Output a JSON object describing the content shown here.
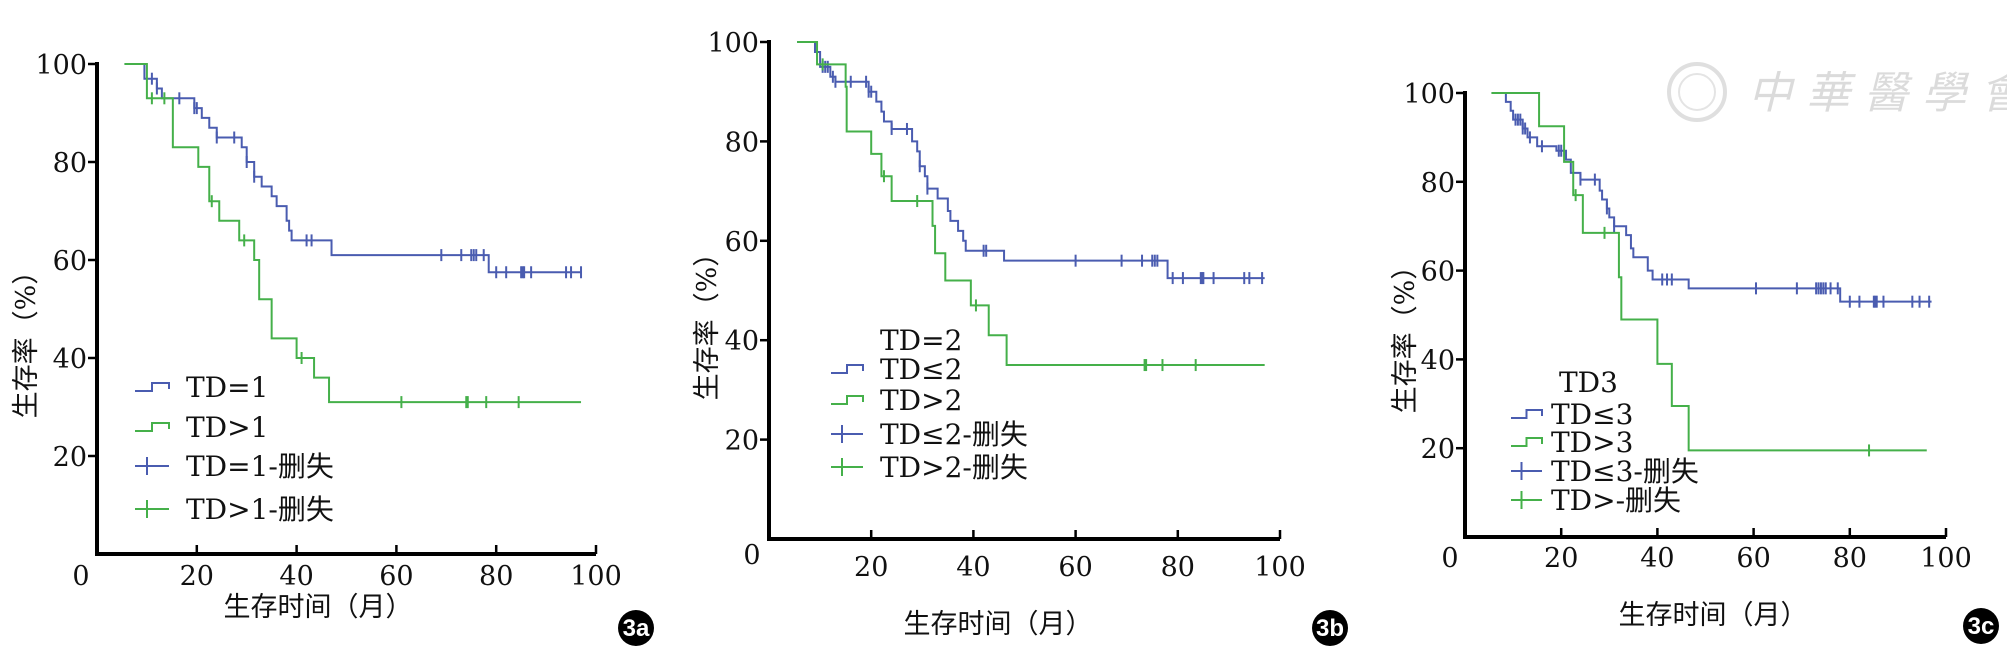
{
  "colors": {
    "group_low": "#4a5cb0",
    "group_high": "#45b04a",
    "axis": "#000000"
  },
  "watermark": {
    "text": "中華醫學會"
  },
  "chart_data": [
    {
      "type": "line",
      "panel": "3a",
      "title": "",
      "xlabel": "生存时间（月）",
      "ylabel": "生存率（%）",
      "xlim": [
        0,
        100
      ],
      "ylim": [
        0,
        100
      ],
      "xticks": [
        "0",
        "20",
        "40",
        "60",
        "80",
        "100"
      ],
      "yticks": [
        "20",
        "40",
        "60",
        "80",
        "100"
      ],
      "legend_title": "",
      "legend": [
        "TD=1",
        "TD>1",
        "TD=1-删失",
        "TD>1-删失"
      ],
      "series": [
        {
          "name": "TD=1",
          "end": 97,
          "steps": [
            [
              5.5,
              100
            ],
            [
              9.5,
              97
            ],
            [
              12,
              95
            ],
            [
              13,
              93
            ],
            [
              19.5,
              91
            ],
            [
              21,
              89
            ],
            [
              22.5,
              87
            ],
            [
              24,
              85
            ],
            [
              29,
              83
            ],
            [
              30,
              80
            ],
            [
              31.5,
              77
            ],
            [
              33,
              75
            ],
            [
              35,
              73
            ],
            [
              36,
              71
            ],
            [
              38,
              68
            ],
            [
              38.5,
              66
            ],
            [
              39,
              64
            ],
            [
              47,
              61
            ],
            [
              78.5,
              57.5
            ]
          ],
          "censored": [
            11,
            12,
            16.5,
            19.5,
            20,
            24,
            27.5,
            30,
            31.5,
            42,
            43,
            69,
            73,
            75,
            75.5,
            76,
            77.5,
            80,
            82,
            85,
            85.3,
            85.6,
            87,
            94,
            95,
            97
          ]
        },
        {
          "name": "TD>1",
          "end": 97,
          "steps": [
            [
              5.5,
              100
            ],
            [
              10,
              93
            ],
            [
              15.2,
              83
            ],
            [
              20.3,
              79
            ],
            [
              22.5,
              72
            ],
            [
              24.5,
              68
            ],
            [
              28.5,
              64
            ],
            [
              31.5,
              60
            ],
            [
              32.5,
              52
            ],
            [
              35,
              44
            ],
            [
              40,
              40
            ],
            [
              43.5,
              36
            ],
            [
              46.5,
              31
            ]
          ],
          "censored": [
            11,
            13.5,
            23,
            29.5,
            41,
            61,
            74,
            74.3,
            78,
            84.5
          ]
        }
      ]
    },
    {
      "type": "line",
      "panel": "3b",
      "title": "",
      "xlabel": "生存时间（月）",
      "ylabel": "生存率（%）",
      "xlim": [
        0,
        100
      ],
      "ylim": [
        0,
        100
      ],
      "xticks": [
        "0",
        "20",
        "40",
        "60",
        "80",
        "100"
      ],
      "yticks": [
        "20",
        "40",
        "60",
        "80",
        "100"
      ],
      "legend_title": "TD=2",
      "legend": [
        "TD≤2",
        "TD>2",
        "TD≤2-删失",
        "TD>2-删失"
      ],
      "series": [
        {
          "name": "TD≤2",
          "end": 97,
          "steps": [
            [
              5.5,
              100
            ],
            [
              9,
              98
            ],
            [
              10,
              95
            ],
            [
              12,
              93
            ],
            [
              13,
              92
            ],
            [
              19.5,
              90
            ],
            [
              21,
              88
            ],
            [
              22,
              86
            ],
            [
              22.5,
              84
            ],
            [
              24,
              82.5
            ],
            [
              28,
              80
            ],
            [
              29,
              78
            ],
            [
              29.5,
              75
            ],
            [
              30.5,
              73
            ],
            [
              31,
              70.5
            ],
            [
              33,
              68.5
            ],
            [
              35,
              66
            ],
            [
              35.5,
              64
            ],
            [
              37,
              62
            ],
            [
              38,
              60
            ],
            [
              38.5,
              58
            ],
            [
              46,
              56
            ],
            [
              78,
              52.5
            ]
          ],
          "censored": [
            10.5,
            11,
            11.5,
            12.5,
            13,
            16,
            19,
            19.5,
            20,
            24,
            27,
            29.5,
            31,
            42,
            42.5,
            60,
            69,
            73,
            75,
            75.5,
            76,
            79,
            81,
            84.5,
            84.8,
            85,
            87,
            93,
            94,
            96.5
          ]
        },
        {
          "name": "TD>2",
          "end": 97,
          "steps": [
            [
              5.5,
              100
            ],
            [
              9.4,
              95.5
            ],
            [
              15,
              91
            ],
            [
              15.2,
              82
            ],
            [
              20,
              77.5
            ],
            [
              22,
              73
            ],
            [
              24,
              68
            ],
            [
              32,
              63
            ],
            [
              32.5,
              57.5
            ],
            [
              34.5,
              52
            ],
            [
              39.5,
              47
            ],
            [
              43,
              41
            ],
            [
              46.5,
              35
            ]
          ],
          "censored": [
            10.5,
            22.5,
            29,
            40.5,
            73.5,
            73.8,
            77,
            83.5
          ]
        }
      ]
    },
    {
      "type": "line",
      "panel": "3c",
      "title": "",
      "xlabel": "生存时间（月）",
      "ylabel": "生存率（%）",
      "xlim": [
        0,
        100
      ],
      "ylim": [
        0,
        100
      ],
      "xticks": [
        "0",
        "20",
        "40",
        "60",
        "80",
        "100"
      ],
      "yticks": [
        "20",
        "40",
        "60",
        "80",
        "100"
      ],
      "legend_title": "TD3",
      "legend": [
        "TD≤3",
        "TD>3",
        "TD≤3-删失",
        "TD>-删失"
      ],
      "series": [
        {
          "name": "TD≤3",
          "end": 97,
          "steps": [
            [
              5.5,
              100
            ],
            [
              8.5,
              98
            ],
            [
              9.5,
              96
            ],
            [
              10,
              94
            ],
            [
              12,
              92
            ],
            [
              13,
              90
            ],
            [
              15,
              88
            ],
            [
              19,
              87
            ],
            [
              21,
              85
            ],
            [
              22,
              82
            ],
            [
              24,
              80.5
            ],
            [
              28,
              78
            ],
            [
              28.5,
              76
            ],
            [
              29.5,
              74
            ],
            [
              30,
              72
            ],
            [
              31,
              70
            ],
            [
              33.5,
              68
            ],
            [
              34.5,
              65
            ],
            [
              35,
              63
            ],
            [
              38,
              60
            ],
            [
              39,
              58
            ],
            [
              46.5,
              56
            ],
            [
              78,
              53
            ]
          ],
          "censored": [
            10.5,
            11,
            11.5,
            12,
            12.5,
            13.5,
            16,
            19.5,
            20,
            24,
            27,
            29.5,
            31,
            41,
            42,
            43,
            60.5,
            69,
            73,
            73.5,
            74,
            74.5,
            75,
            76,
            77.5,
            80,
            82,
            85,
            85.3,
            85.6,
            87,
            93,
            94.5,
            96.5
          ]
        },
        {
          "name": "TD>3",
          "end": 96,
          "steps": [
            [
              5.5,
              100
            ],
            [
              15.4,
              92.5
            ],
            [
              20.6,
              84.5
            ],
            [
              22.5,
              77
            ],
            [
              24.5,
              68.5
            ],
            [
              32,
              58.5
            ],
            [
              32.5,
              49
            ],
            [
              40,
              39
            ],
            [
              43,
              29.5
            ],
            [
              46.5,
              19.5
            ]
          ],
          "censored": [
            23,
            29,
            84
          ]
        }
      ]
    }
  ]
}
